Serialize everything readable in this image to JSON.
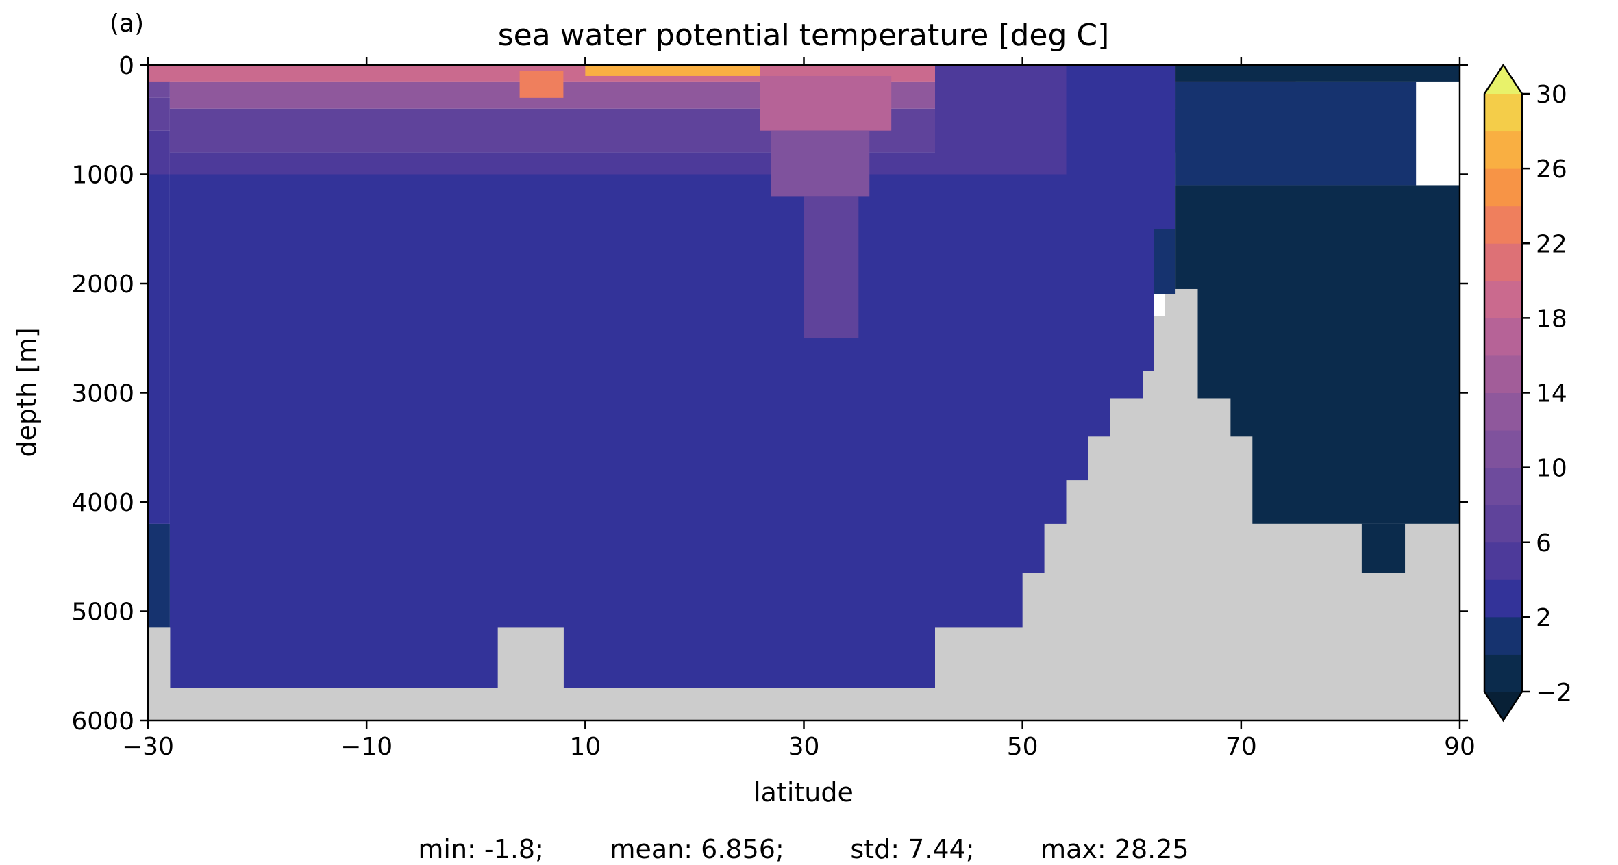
{
  "chart_data": {
    "type": "heatmap",
    "panel_label": "(a)",
    "title": "sea water potential temperature [deg C]",
    "xlabel": "latitude",
    "ylabel": "depth [m]",
    "xlim": [
      -30,
      90
    ],
    "ylim": [
      6000,
      0
    ],
    "xticks": [
      -30,
      -10,
      10,
      30,
      50,
      70,
      90
    ],
    "xtick_labels": [
      "−30",
      "−10",
      "10",
      "30",
      "50",
      "70",
      "90"
    ],
    "yticks": [
      0,
      1000,
      2000,
      3000,
      4000,
      5000,
      6000
    ],
    "ytick_labels": [
      "0",
      "1000",
      "2000",
      "3000",
      "4000",
      "5000",
      "6000"
    ],
    "colorbar": {
      "levels": [
        -2,
        0,
        2,
        4,
        6,
        8,
        10,
        12,
        14,
        16,
        18,
        20,
        22,
        24,
        26,
        28,
        30
      ],
      "tick_values": [
        -2,
        2,
        6,
        10,
        14,
        18,
        22,
        26,
        30
      ],
      "tick_labels": [
        "−2",
        "2",
        "6",
        "10",
        "14",
        "18",
        "22",
        "26",
        "30"
      ],
      "extend": "both",
      "colors": [
        "#0b2b4c",
        "#16336f",
        "#333399",
        "#4d3a9a",
        "#5f439b",
        "#6e4b9d",
        "#7f529d",
        "#8f589c",
        "#a25d99",
        "#b66397",
        "#ca6a8e",
        "#dd7176",
        "#ef7f5d",
        "#f79446",
        "#f9af42",
        "#f4cd49",
        "#edec5c"
      ],
      "under_color": "#082036",
      "over_color": "#e8f26a"
    },
    "land_color": "#cccccc",
    "field": [
      {
        "x_range": [
          -30,
          -28
        ],
        "depth_range": [
          0,
          100
        ],
        "value": 15
      },
      {
        "x_range": [
          -30,
          -28
        ],
        "depth_range": [
          100,
          300
        ],
        "value": 9
      },
      {
        "x_range": [
          -30,
          -28
        ],
        "depth_range": [
          300,
          600
        ],
        "value": 6
      },
      {
        "x_range": [
          -30,
          -28
        ],
        "depth_range": [
          600,
          1000
        ],
        "value": 4
      },
      {
        "x_range": [
          -30,
          -28
        ],
        "depth_range": [
          1000,
          4200
        ],
        "value": 3
      },
      {
        "x_range": [
          -30,
          -28
        ],
        "depth_range": [
          4200,
          5150
        ],
        "value": 1
      },
      {
        "x_range": [
          -28,
          -24
        ],
        "depth_range": [
          4200,
          5700
        ],
        "value": 1
      },
      {
        "x_range": [
          -24,
          2
        ],
        "depth_range": [
          4650,
          5700
        ],
        "value": 1
      },
      {
        "x_range": [
          2,
          5
        ],
        "depth_range": [
          4650,
          5150
        ],
        "value": 1
      },
      {
        "x_range": [
          -30,
          75
        ],
        "depth_range": [
          0,
          150
        ],
        "value": 19
      },
      {
        "x_range": [
          -28,
          70
        ],
        "depth_range": [
          150,
          400
        ],
        "value": 13
      },
      {
        "x_range": [
          -28,
          68
        ],
        "depth_range": [
          400,
          800
        ],
        "value": 7
      },
      {
        "x_range": [
          -28,
          64
        ],
        "depth_range": [
          800,
          1000
        ],
        "value": 5
      },
      {
        "x_range": [
          -28,
          62
        ],
        "depth_range": [
          1000,
          5700
        ],
        "value": 3
      },
      {
        "x_range": [
          4,
          8
        ],
        "depth_range": [
          50,
          300
        ],
        "value": 23
      },
      {
        "x_range": [
          10,
          26
        ],
        "depth_range": [
          0,
          100
        ],
        "value": 27
      },
      {
        "x_range": [
          26,
          38
        ],
        "depth_range": [
          100,
          600
        ],
        "value": 17
      },
      {
        "x_range": [
          27,
          36
        ],
        "depth_range": [
          600,
          1200
        ],
        "value": 11
      },
      {
        "x_range": [
          30,
          35
        ],
        "depth_range": [
          1200,
          2500
        ],
        "value": 7
      },
      {
        "x_range": [
          42,
          55
        ],
        "depth_range": [
          0,
          1000
        ],
        "value": 5
      },
      {
        "x_range": [
          54,
          64
        ],
        "depth_range": [
          0,
          2100
        ],
        "value": 3
      },
      {
        "x_range": [
          62,
          64
        ],
        "depth_range": [
          1500,
          2100
        ],
        "value": 1
      },
      {
        "x_range": [
          64,
          90
        ],
        "depth_range": [
          0,
          150
        ],
        "value": -1
      },
      {
        "x_range": [
          64,
          86
        ],
        "depth_range": [
          150,
          1100
        ],
        "value": 1
      },
      {
        "x_range": [
          64,
          90
        ],
        "depth_range": [
          1100,
          4200
        ],
        "value": -1
      },
      {
        "x_range": [
          81,
          85
        ],
        "depth_range": [
          4200,
          4650
        ],
        "value": -1
      }
    ],
    "bathymetry": [
      {
        "x_range": [
          -30,
          -28
        ],
        "floor_depth": 5150
      },
      {
        "x_range": [
          -28,
          2
        ],
        "floor_depth": 5700
      },
      {
        "x_range": [
          2,
          8
        ],
        "floor_depth": 5150
      },
      {
        "x_range": [
          8,
          42
        ],
        "floor_depth": 5700
      },
      {
        "x_range": [
          42,
          50
        ],
        "floor_depth": 5150
      },
      {
        "x_range": [
          50,
          52
        ],
        "floor_depth": 4650
      },
      {
        "x_range": [
          52,
          54
        ],
        "floor_depth": 4200
      },
      {
        "x_range": [
          54,
          56
        ],
        "floor_depth": 3800
      },
      {
        "x_range": [
          56,
          58
        ],
        "floor_depth": 3400
      },
      {
        "x_range": [
          58,
          61
        ],
        "floor_depth": 3050
      },
      {
        "x_range": [
          61,
          62
        ],
        "floor_depth": 2800
      },
      {
        "x_range": [
          62,
          63
        ],
        "floor_depth": 2300
      },
      {
        "x_range": [
          63,
          64
        ],
        "floor_depth": 2100
      },
      {
        "x_range": [
          64,
          65
        ],
        "floor_depth": 2050
      },
      {
        "x_range": [
          65,
          66
        ],
        "floor_depth": 2050
      },
      {
        "x_range": [
          66,
          69
        ],
        "floor_depth": 3050
      },
      {
        "x_range": [
          69,
          71
        ],
        "floor_depth": 3400
      },
      {
        "x_range": [
          71,
          81
        ],
        "floor_depth": 4200
      },
      {
        "x_range": [
          81,
          85
        ],
        "floor_depth": 4650
      },
      {
        "x_range": [
          85,
          90
        ],
        "floor_depth": 4200
      }
    ],
    "summary_text": "min: -1.8;        mean: 6.856;        std: 7.44;        max: 28.25"
  }
}
